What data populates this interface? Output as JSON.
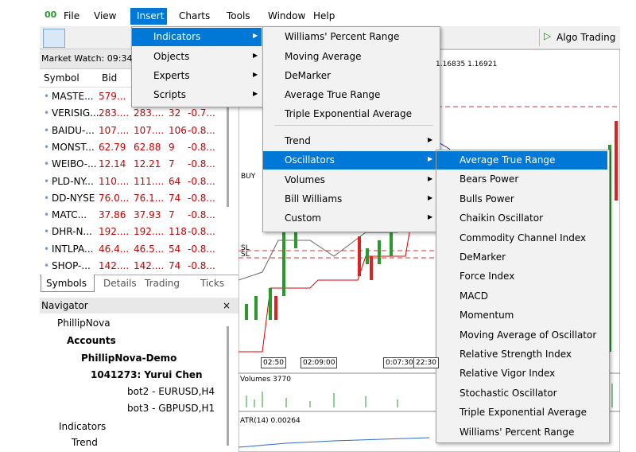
{
  "menu_bar": [
    "File",
    "View",
    "Insert",
    "Charts",
    "Tools",
    "Window",
    "Help"
  ],
  "toolbar": {
    "algo_trading": "Algo Trading"
  },
  "insert_menu": [
    "Indicators",
    "Objects",
    "Experts",
    "Scripts"
  ],
  "indicators_menu": {
    "recent": [
      "Williams' Percent Range",
      "Moving Average",
      "DeMarker",
      "Average True Range",
      "Triple Exponential Average"
    ],
    "groups": [
      "Trend",
      "Oscillators",
      "Volumes",
      "Bill Williams",
      "Custom"
    ]
  },
  "oscillators_menu": [
    "Average True Range",
    "Bears Power",
    "Bulls Power",
    "Chaikin Oscillator",
    "Commodity Channel Index",
    "DeMarker",
    "Force Index",
    "MACD",
    "Momentum",
    "Moving Average of Oscillator",
    "Relative Strength Index",
    "Relative Vigor Index",
    "Stochastic Oscillator",
    "Triple Exponential Average",
    "Williams' Percent Range"
  ],
  "market_watch": {
    "title": "Market Watch: 09:34",
    "columns": [
      "Symbol",
      "Bid"
    ],
    "rows": [
      [
        "MASTE...",
        "579..."
      ],
      [
        "VERISIG...",
        "283....",
        "283....",
        "32",
        "-0.7..."
      ],
      [
        "BAIDU-...",
        "107....",
        "107....",
        "106",
        "-0.8..."
      ],
      [
        "MONST...",
        "62.79",
        "62.88",
        "9",
        "-0.8..."
      ],
      [
        "WEIBO-...",
        "12.14",
        "12.21",
        "7",
        "-0.8..."
      ],
      [
        "PLD-NY...",
        "110....",
        "111....",
        "64",
        "-0.8..."
      ],
      [
        "DD-NYSE",
        "76.0...",
        "76.1...",
        "74",
        "-0.8..."
      ],
      [
        "MATC...",
        "37.86",
        "37.93",
        "7",
        "-0.8..."
      ],
      [
        "DHR-N...",
        "192....",
        "192....",
        "118",
        "-0.8..."
      ],
      [
        "INTLPA...",
        "46.4...",
        "46.5...",
        "54",
        "-0.8..."
      ],
      [
        "SHOP-...",
        "142....",
        "142....",
        "74",
        "-0.8..."
      ]
    ],
    "tabs": [
      "Symbols",
      "Details",
      "Trading",
      "Ticks"
    ]
  },
  "navigator": {
    "title": "Navigator",
    "close": "×",
    "items": [
      "PhillipNova",
      "Accounts",
      "PhillipNova-Demo",
      "1041273: Yurui Chen",
      "bot2 - EURUSD,H4",
      "bot3 - GBPUSD,H1",
      "Indicators",
      "Trend"
    ]
  },
  "chart": {
    "price": "1.16835 1.16921",
    "labels": [
      "BUY",
      "SL",
      "SL"
    ],
    "times": [
      "02:50",
      "02:09:00",
      "0:07:30",
      "22:30"
    ],
    "volumes": "Volumes 3770",
    "atr": "ATR(14) 0.00264"
  }
}
